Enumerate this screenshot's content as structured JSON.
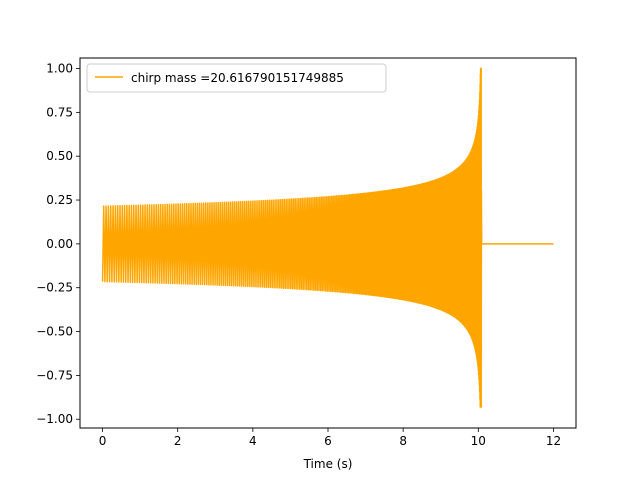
{
  "chart_data": {
    "type": "line",
    "title": "",
    "xlabel": "Time (s)",
    "ylabel": "",
    "xlim": [
      -0.6,
      12.6
    ],
    "ylim": [
      -1.05,
      1.06
    ],
    "xticks": [
      0,
      2,
      4,
      6,
      8,
      10,
      12
    ],
    "xtick_labels": [
      "0",
      "2",
      "4",
      "6",
      "8",
      "10",
      "12"
    ],
    "yticks": [
      -1.0,
      -0.75,
      -0.5,
      -0.25,
      0.0,
      0.25,
      0.5,
      0.75,
      1.0
    ],
    "ytick_labels": [
      "−1.00",
      "−0.75",
      "−0.50",
      "−0.25",
      "0.00",
      "0.25",
      "0.50",
      "0.75",
      "1.00"
    ],
    "grid": false,
    "legend_position": "upper-left",
    "series": [
      {
        "name": "chirp mass =20.616790151749885",
        "color": "#ffa500",
        "start_time": 0.0,
        "merger_time": 10.08,
        "end_time": 12.0,
        "initial_amplitude": 0.215,
        "peak_positive": 1.0,
        "peak_negative": -0.93,
        "post_merger_value": 0.0
      }
    ]
  }
}
